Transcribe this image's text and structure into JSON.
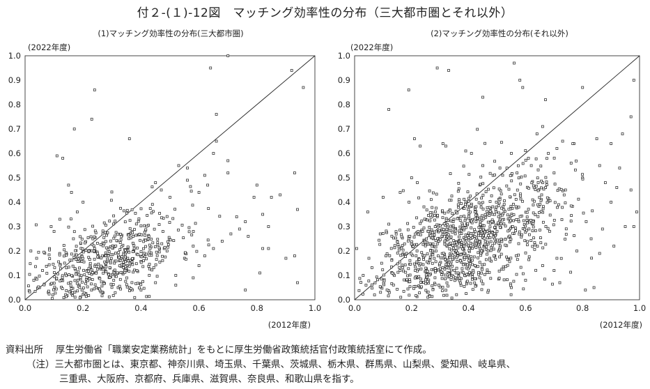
{
  "figure": {
    "title": "付２-(１)-12図　マッチング効率性の分布（三大都市圏とそれ以外）"
  },
  "footer": {
    "source_label": "資料出所",
    "source_text": "厚生労働省「職業安定業務統計」をもとに厚生労働省政策統括官付政策統括室にて作成。",
    "note_label": "（注）",
    "note_line1": "三大都市圏とは、東京都、神奈川県、埼玉県、千葉県、茨城県、栃木県、群馬県、山梨県、愛知県、岐阜県、",
    "note_line2": "三重県、大阪府、京都府、兵庫県、滋賀県、奈良県、和歌山県を指す。"
  },
  "style": {
    "marker_stroke": "#333333",
    "axis_color": "#333333",
    "diagonal_color": "#222222"
  },
  "chart_data": [
    {
      "type": "scatter",
      "title": "(1)マッチング効率性の分布(三大都市圏)",
      "xlabel": "(2012年度)",
      "ylabel": "(2022年度)",
      "xlim": [
        0,
        1.0
      ],
      "ylim": [
        0,
        1.0
      ],
      "x_ticks": [
        "0.0",
        "0.2",
        "0.4",
        "0.6",
        "0.8",
        "1.0"
      ],
      "y_ticks": [
        "0.0",
        "0.1",
        "0.2",
        "0.3",
        "0.4",
        "0.5",
        "0.6",
        "0.7",
        "0.8",
        "0.9",
        "1.0"
      ],
      "grid": false,
      "diagonal": true,
      "points": [
        [
          0.7,
          1.0
        ],
        [
          0.64,
          0.95
        ],
        [
          0.92,
          0.94
        ],
        [
          0.96,
          0.87
        ],
        [
          0.24,
          0.86
        ],
        [
          0.17,
          0.7
        ],
        [
          0.23,
          0.74
        ],
        [
          0.66,
          0.76
        ],
        [
          0.36,
          0.66
        ],
        [
          0.66,
          0.65
        ],
        [
          0.13,
          0.58
        ],
        [
          0.11,
          0.59
        ],
        [
          0.65,
          0.6
        ],
        [
          0.7,
          0.57
        ],
        [
          0.53,
          0.55
        ],
        [
          0.56,
          0.54
        ],
        [
          0.93,
          0.52
        ],
        [
          0.7,
          0.52
        ],
        [
          0.8,
          0.47
        ],
        [
          0.79,
          0.42
        ],
        [
          0.88,
          0.43
        ],
        [
          0.85,
          0.42
        ],
        [
          0.94,
          0.37
        ],
        [
          0.82,
          0.35
        ],
        [
          0.73,
          0.34
        ],
        [
          0.76,
          0.32
        ],
        [
          0.84,
          0.3
        ],
        [
          0.74,
          0.29
        ],
        [
          0.71,
          0.27
        ],
        [
          0.77,
          0.26
        ],
        [
          0.68,
          0.24
        ],
        [
          0.82,
          0.21
        ],
        [
          0.65,
          0.21
        ],
        [
          0.58,
          0.22
        ],
        [
          0.9,
          0.17
        ],
        [
          0.81,
          0.11
        ],
        [
          0.76,
          0.04
        ],
        [
          0.94,
          0.07
        ],
        [
          0.93,
          0.18
        ],
        [
          0.84,
          0.21
        ],
        [
          0.62,
          0.18
        ],
        [
          0.6,
          0.14
        ],
        [
          0.52,
          0.1
        ],
        [
          0.49,
          0.2
        ],
        [
          0.55,
          0.17
        ],
        [
          0.45,
          0.07
        ],
        [
          0.36,
          0.05
        ],
        [
          0.4,
          0.04
        ],
        [
          0.52,
          0.06
        ],
        [
          0.58,
          0.09
        ],
        [
          0.02,
          0.2
        ],
        [
          0.04,
          0.17
        ],
        [
          0.05,
          0.05
        ],
        [
          0.08,
          0.03
        ],
        [
          0.03,
          0.08
        ],
        [
          0.06,
          0.12
        ],
        [
          0.1,
          0.28
        ],
        [
          0.09,
          0.3
        ],
        [
          0.16,
          0.44
        ],
        [
          0.15,
          0.47
        ],
        [
          0.2,
          0.4
        ],
        [
          0.18,
          0.36
        ],
        [
          0.12,
          0.33
        ],
        [
          0.62,
          0.51
        ],
        [
          0.6,
          0.44
        ],
        [
          0.63,
          0.47
        ],
        [
          0.56,
          0.49
        ],
        [
          0.47,
          0.45
        ],
        [
          0.45,
          0.48
        ],
        [
          0.5,
          0.42
        ]
      ],
      "cluster": {
        "center": [
          0.27,
          0.15
        ],
        "spread": [
          0.13,
          0.09
        ],
        "count": 640,
        "seed": 11
      }
    },
    {
      "type": "scatter",
      "title": "(2)マッチング効率性の分布(それ以外)",
      "xlabel": "(2012年度)",
      "ylabel": "(2022年度)",
      "xlim": [
        0,
        1.0
      ],
      "ylim": [
        0,
        1.0
      ],
      "x_ticks": [
        "0.0",
        "0.2",
        "0.4",
        "0.6",
        "0.8",
        "1.0"
      ],
      "y_ticks": [
        "0.0",
        "0.1",
        "0.2",
        "0.3",
        "0.4",
        "0.5",
        "0.6",
        "0.7",
        "0.8",
        "0.9",
        "1.0"
      ],
      "grid": false,
      "diagonal": true,
      "points": [
        [
          0.29,
          0.95
        ],
        [
          0.33,
          0.94
        ],
        [
          0.56,
          0.97
        ],
        [
          0.58,
          0.9
        ],
        [
          0.59,
          0.87
        ],
        [
          0.8,
          0.87
        ],
        [
          0.98,
          0.9
        ],
        [
          0.19,
          0.86
        ],
        [
          0.45,
          0.83
        ],
        [
          0.67,
          0.82
        ],
        [
          0.12,
          0.78
        ],
        [
          0.21,
          0.66
        ],
        [
          0.23,
          0.63
        ],
        [
          0.31,
          0.64
        ],
        [
          0.32,
          0.63
        ],
        [
          0.39,
          0.61
        ],
        [
          0.41,
          0.6
        ],
        [
          0.55,
          0.6
        ],
        [
          0.61,
          0.58
        ],
        [
          0.71,
          0.62
        ],
        [
          0.77,
          0.64
        ],
        [
          0.85,
          0.66
        ],
        [
          0.9,
          0.64
        ],
        [
          0.94,
          0.68
        ],
        [
          0.97,
          0.75
        ],
        [
          0.86,
          0.55
        ],
        [
          0.93,
          0.54
        ],
        [
          0.97,
          0.45
        ],
        [
          0.99,
          0.36
        ],
        [
          0.9,
          0.4
        ],
        [
          0.87,
          0.29
        ],
        [
          0.95,
          0.3
        ],
        [
          0.98,
          0.3
        ],
        [
          0.83,
          0.25
        ],
        [
          0.91,
          0.22
        ],
        [
          0.78,
          0.2
        ],
        [
          0.71,
          0.17
        ],
        [
          0.86,
          0.19
        ],
        [
          0.84,
          0.05
        ],
        [
          0.81,
          0.04
        ],
        [
          0.66,
          0.14
        ],
        [
          0.7,
          0.12
        ],
        [
          0.72,
          0.07
        ],
        [
          0.6,
          0.08
        ],
        [
          0.55,
          0.05
        ],
        [
          0.2,
          0.5
        ],
        [
          0.22,
          0.48
        ],
        [
          0.16,
          0.44
        ],
        [
          0.1,
          0.42
        ],
        [
          0.12,
          0.31
        ],
        [
          0.09,
          0.27
        ],
        [
          0.05,
          0.17
        ],
        [
          0.03,
          0.1
        ],
        [
          0.04,
          0.06
        ],
        [
          0.07,
          0.02
        ],
        [
          0.74,
          0.45
        ],
        [
          0.66,
          0.48
        ],
        [
          0.7,
          0.52
        ],
        [
          0.62,
          0.55
        ],
        [
          0.57,
          0.52
        ],
        [
          0.51,
          0.54
        ],
        [
          0.45,
          0.55
        ],
        [
          0.8,
          0.5
        ],
        [
          0.76,
          0.56
        ],
        [
          0.64,
          0.68
        ],
        [
          0.66,
          0.71
        ],
        [
          0.73,
          0.65
        ],
        [
          0.68,
          0.6
        ],
        [
          0.88,
          0.48
        ],
        [
          0.92,
          0.46
        ]
      ],
      "cluster": {
        "center": [
          0.38,
          0.23
        ],
        "spread": [
          0.16,
          0.11
        ],
        "count": 1150,
        "seed": 29
      }
    }
  ]
}
